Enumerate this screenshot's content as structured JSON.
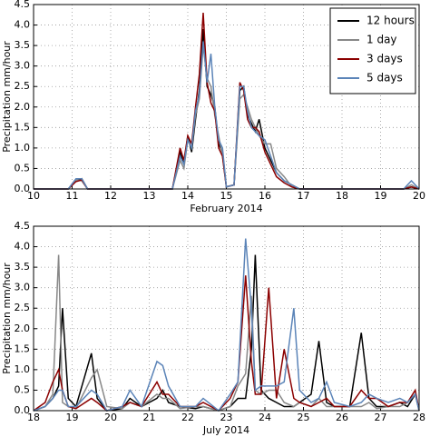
{
  "chart_data": [
    {
      "type": "line",
      "xlabel": "February 2014",
      "ylabel": "Precipitation mm/hour",
      "grid": true,
      "legend": "upper right",
      "x": [
        10,
        10.9,
        11.1,
        11.25,
        11.4,
        13.6,
        13.8,
        13.9,
        14.0,
        14.1,
        14.2,
        14.3,
        14.4,
        14.5,
        14.6,
        14.7,
        14.8,
        14.9,
        15.0,
        15.2,
        15.35,
        15.45,
        15.55,
        15.65,
        15.75,
        15.85,
        16.0,
        16.15,
        16.3,
        16.5,
        16.7,
        16.9,
        19.6,
        19.8,
        20
      ],
      "series": [
        {
          "name": "12 hours",
          "color": "#000000",
          "values": [
            0,
            0,
            0.2,
            0.25,
            0,
            0,
            0.9,
            0.6,
            1.3,
            0.9,
            1.7,
            2.4,
            3.9,
            2.5,
            2.3,
            2.0,
            1.1,
            0.9,
            0.05,
            0.1,
            2.4,
            2.5,
            1.8,
            1.6,
            1.4,
            1.7,
            1.0,
            0.7,
            0.4,
            0.2,
            0.1,
            0,
            0,
            0.05,
            0
          ]
        },
        {
          "name": "1 day",
          "color": "#888888",
          "values": [
            0,
            0,
            0.22,
            0.2,
            0,
            0,
            0.7,
            0.5,
            1.2,
            1.0,
            1.8,
            2.2,
            3.5,
            2.7,
            2.5,
            1.8,
            1.3,
            0.8,
            0.05,
            0.1,
            2.2,
            2.3,
            2.0,
            1.7,
            1.5,
            1.3,
            1.1,
            1.1,
            0.5,
            0.3,
            0.05,
            0,
            0,
            0.1,
            0
          ]
        },
        {
          "name": "3 days",
          "color": "#8b0000",
          "values": [
            0,
            0,
            0.18,
            0.22,
            0,
            0,
            1.0,
            0.7,
            1.3,
            1.1,
            2.0,
            2.8,
            4.3,
            2.6,
            2.1,
            1.9,
            1.0,
            0.8,
            0.05,
            0.1,
            2.6,
            2.4,
            1.7,
            1.5,
            1.5,
            1.4,
            0.9,
            0.6,
            0.3,
            0.15,
            0.05,
            0,
            0,
            0.05,
            0
          ]
        },
        {
          "name": "5 days",
          "color": "#5b84b8",
          "values": [
            0,
            0,
            0.25,
            0.25,
            0,
            0,
            0.8,
            0.6,
            1.2,
            1.0,
            1.9,
            2.3,
            3.6,
            2.6,
            3.3,
            2.0,
            1.2,
            1.0,
            0.05,
            0.1,
            2.5,
            2.5,
            1.9,
            1.5,
            1.4,
            1.3,
            1.2,
            0.8,
            0.4,
            0.2,
            0.1,
            0,
            0,
            0.2,
            0
          ]
        }
      ],
      "xlim": [
        10,
        20
      ],
      "xticks": [
        10,
        11,
        12,
        13,
        14,
        15,
        16,
        17,
        18,
        19,
        20
      ],
      "ylim": [
        0,
        4.5
      ],
      "yticks": [
        {
          "value": 0,
          "label": "0.0"
        },
        0.5,
        {
          "value": 1,
          "label": "1.0"
        },
        1.5,
        {
          "value": 2,
          "label": "2.0"
        },
        2.5,
        {
          "value": 3,
          "label": "3.0"
        },
        3.5,
        {
          "value": 4,
          "label": "4.0"
        },
        4.5
      ]
    },
    {
      "type": "line",
      "xlabel": "July 2014",
      "ylabel": "Precipitation mm/hour",
      "grid": true,
      "x": [
        18,
        18.3,
        18.5,
        18.65,
        18.75,
        18.9,
        19.1,
        19.5,
        19.65,
        19.9,
        20.3,
        20.5,
        20.8,
        21.2,
        21.35,
        21.5,
        21.8,
        22.2,
        22.4,
        22.8,
        23.1,
        23.3,
        23.5,
        23.65,
        23.75,
        23.9,
        24.1,
        24.3,
        24.5,
        24.75,
        24.9,
        25.2,
        25.4,
        25.6,
        25.8,
        26.2,
        26.5,
        26.7,
        26.9,
        27.2,
        27.5,
        27.7,
        27.9,
        28
      ],
      "series": [
        {
          "color": "#000000",
          "values": [
            0,
            0.1,
            0.3,
            0.6,
            2.5,
            0.3,
            0.1,
            1.4,
            0.3,
            0,
            0.05,
            0.3,
            0.1,
            0.3,
            0.5,
            0.2,
            0.1,
            0.05,
            0.1,
            0,
            0.1,
            0.3,
            0.3,
            1.5,
            3.8,
            0.5,
            0.3,
            0.2,
            0.1,
            0.1,
            0.2,
            0.4,
            1.7,
            0.2,
            0.1,
            0.1,
            1.9,
            0.3,
            0.1,
            0.1,
            0.2,
            0.1,
            0.4,
            0
          ]
        },
        {
          "color": "#888888",
          "values": [
            0,
            0.1,
            0.4,
            3.8,
            0.2,
            0.1,
            0.05,
            0.8,
            1.0,
            0.1,
            0.05,
            0.2,
            0.1,
            0.4,
            0.3,
            0.3,
            0.05,
            0.1,
            0.1,
            0,
            0.1,
            0.6,
            0.9,
            2.8,
            0.5,
            0.4,
            0.5,
            0.5,
            0.2,
            0.1,
            0.2,
            0.1,
            0.3,
            0.1,
            0.1,
            0.1,
            0.1,
            0.2,
            0.05,
            0.1,
            0.1,
            0.2,
            0.4,
            0
          ]
        },
        {
          "color": "#8b0000",
          "values": [
            0,
            0.2,
            0.7,
            1.0,
            0.5,
            0.1,
            0.05,
            0.3,
            0.2,
            0,
            0.1,
            0.2,
            0.1,
            0.7,
            0.4,
            0.4,
            0.1,
            0.1,
            0.2,
            0,
            0.3,
            0.7,
            3.3,
            1.2,
            0.4,
            0.4,
            3.0,
            0.3,
            1.5,
            0.3,
            0.2,
            0.1,
            0.2,
            0.3,
            0.1,
            0.1,
            0.5,
            0.3,
            0.3,
            0.1,
            0.2,
            0.2,
            0.5,
            0
          ]
        },
        {
          "color": "#5b84b8",
          "values": [
            0,
            0.1,
            0.3,
            0.5,
            0.5,
            0.1,
            0.1,
            0.5,
            0.4,
            0,
            0.1,
            0.5,
            0.1,
            1.2,
            1.1,
            0.6,
            0.1,
            0.1,
            0.3,
            0,
            0.4,
            0.7,
            4.2,
            2.5,
            0.5,
            0.6,
            0.6,
            0.6,
            0.7,
            2.5,
            0.5,
            0.2,
            0.3,
            0.7,
            0.2,
            0.1,
            0.2,
            0.4,
            0.3,
            0.2,
            0.3,
            0.2,
            0.4,
            0
          ]
        }
      ],
      "xlim": [
        18,
        28
      ],
      "xticks": [
        18,
        19,
        20,
        21,
        22,
        23,
        24,
        25,
        26,
        27,
        28
      ],
      "ylim": [
        0,
        4.5
      ],
      "yticks": [
        {
          "value": 0,
          "label": "0.0"
        },
        0.5,
        {
          "value": 1,
          "label": "1.0"
        },
        1.5,
        {
          "value": 2,
          "label": "2.0"
        },
        2.5,
        {
          "value": 3,
          "label": "3.0"
        },
        3.5,
        {
          "value": 4,
          "label": "4.0"
        },
        4.5
      ]
    }
  ]
}
